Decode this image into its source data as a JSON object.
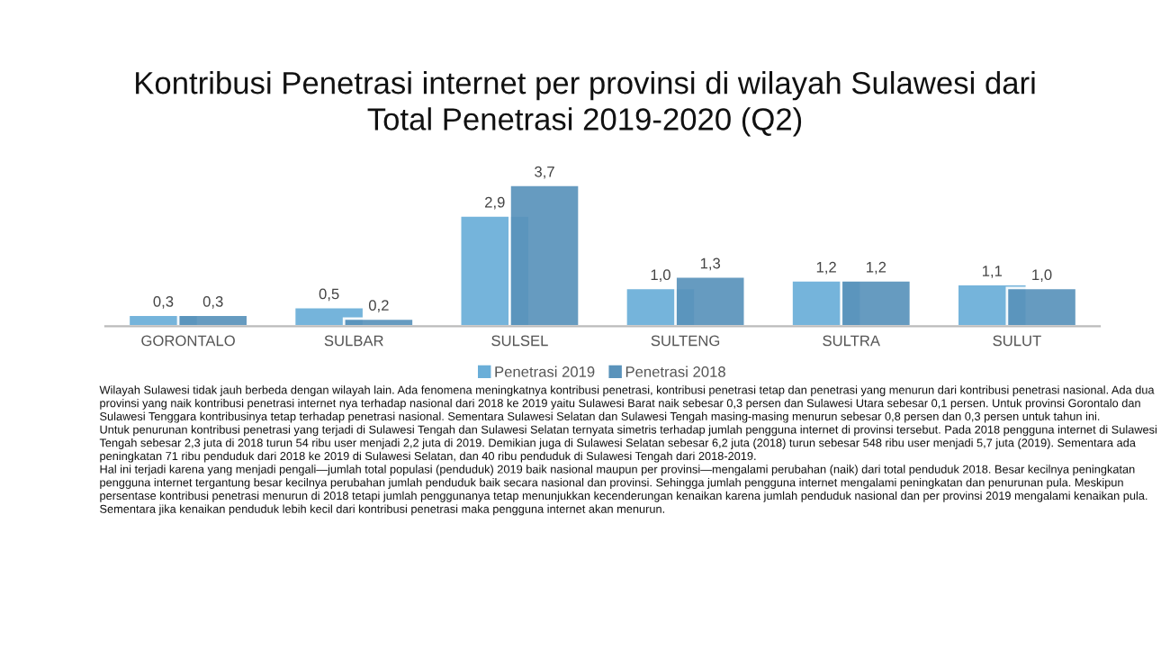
{
  "chart_data": {
    "type": "bar",
    "title": "Kontribusi Penetrasi internet per provinsi di wilayah Sulawesi dari",
    "subtitle": "Total Penetrasi 2019-2020 (Q2)",
    "categories": [
      "GORONTALO",
      "SULBAR",
      "SULSEL",
      "SULTENG",
      "SULTRA",
      "SULUT"
    ],
    "series": [
      {
        "name": "Penetrasi 2019",
        "color": "#6aaed8",
        "values": [
          0.3,
          0.5,
          2.9,
          1.0,
          1.2,
          1.1
        ],
        "value_labels": [
          "0,3",
          "0,5",
          "2,9",
          "1,0",
          "1,2",
          "1,1"
        ]
      },
      {
        "name": "Penetrasi 2018",
        "color": "#5a93bb",
        "values": [
          0.3,
          0.2,
          3.7,
          1.3,
          1.2,
          1.0
        ],
        "value_labels": [
          "0,3",
          "0,2",
          "3,7",
          "1,3",
          "1,2",
          "1,0"
        ]
      }
    ],
    "legend": "bottom",
    "annotations": [
      "Wilayah Sulawesi tidak jauh berbeda dengan wilayah lain. Ada fenomena meningkatnya kontribusi penetrasi, kontribusi penetrasi tetap dan penetrasi yang menurun dari kontribusi penetrasi nasional. Ada dua provinsi yang naik kontribusi penetrasi internet nya terhadap nasional dari 2018 ke 2019 yaitu Sulawesi Barat naik sebesar 0,3 persen dan Sulawesi Utara sebesar 0,1 persen. Untuk provinsi Gorontalo dan Sulawesi Tenggara kontribusinya tetap terhadap penetrasi nasional. Sementara Sulawesi Selatan dan Sulawesi Tengah masing-masing menurun sebesar 0,8 persen dan 0,3 persen untuk tahun ini.",
      "Untuk penurunan kontribusi penetrasi yang terjadi di Sulawesi Tengah dan Sulawesi Selatan ternyata simetris terhadap jumlah pengguna internet di provinsi tersebut. Pada 2018 pengguna internet di Sulawesi Tengah sebesar 2,3 juta di 2018 turun 54 ribu user menjadi 2,2 juta di 2019. Demikian juga di Sulawesi Selatan sebesar 6,2 juta (2018) turun sebesar 548 ribu user menjadi 5,7 juta (2019). Sementara ada peningkatan 71 ribu penduduk dari 2018 ke 2019 di Sulawesi Selatan, dan 40 ribu penduduk di Sulawesi Tengah dari 2018-2019.",
      "Hal ini terjadi karena yang menjadi pengali—jumlah total populasi (penduduk) 2019 baik nasional maupun per provinsi—mengalami perubahan (naik) dari total penduduk 2018. Besar kecilnya peningkatan pengguna internet tergantung besar kecilnya perubahan jumlah penduduk baik secara nasional dan provinsi. Sehingga jumlah pengguna internet mengalami peningkatan dan penurunan pula. Meskipun persentase kontribusi penetrasi menurun di 2018 tetapi jumlah penggunanya tetap menunjukkan kecenderungan kenaikan karena jumlah penduduk nasional dan per provinsi 2019 mengalami kenaikan pula. Sementara jika kenaikan penduduk lebih kecil dari kontribusi penetrasi maka pengguna internet akan menurun."
    ]
  }
}
